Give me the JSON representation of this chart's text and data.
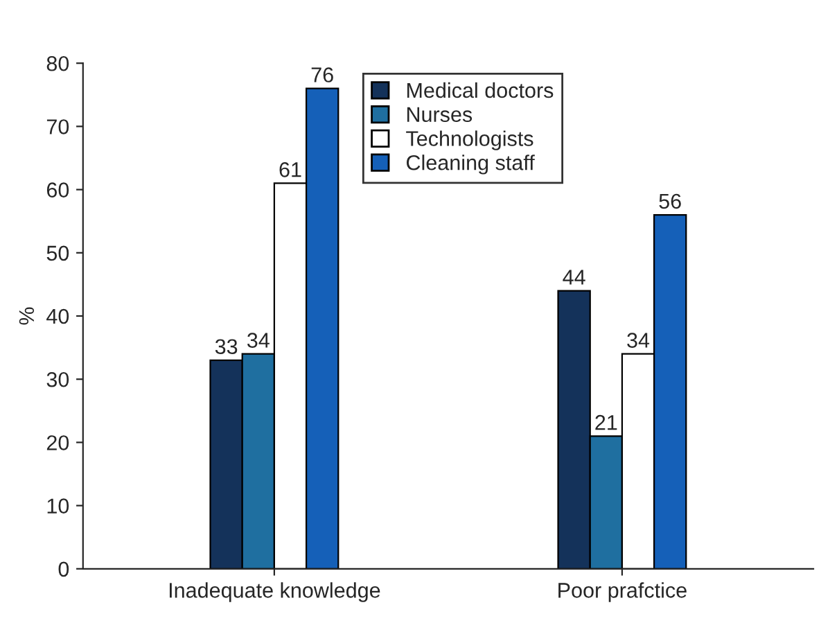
{
  "chart_data": {
    "type": "bar",
    "ylabel": "%",
    "categories": [
      "Inadequate knowledge",
      "Poor prafctice"
    ],
    "series": [
      {
        "name": "Medical doctors",
        "color": "#14325a",
        "values": [
          33,
          44
        ]
      },
      {
        "name": "Nurses",
        "color": "#1f6fa0",
        "values": [
          34,
          21
        ]
      },
      {
        "name": "Technologists",
        "color": "#ffffff",
        "values": [
          61,
          34
        ]
      },
      {
        "name": "Cleaning staff",
        "color": "#1560b8",
        "values": [
          76,
          56
        ]
      }
    ],
    "ylim": [
      0,
      80
    ],
    "yticks": [
      0,
      10,
      20,
      30,
      40,
      50,
      60,
      70,
      80
    ],
    "data_labels": true,
    "grid": false,
    "legend": "top"
  }
}
